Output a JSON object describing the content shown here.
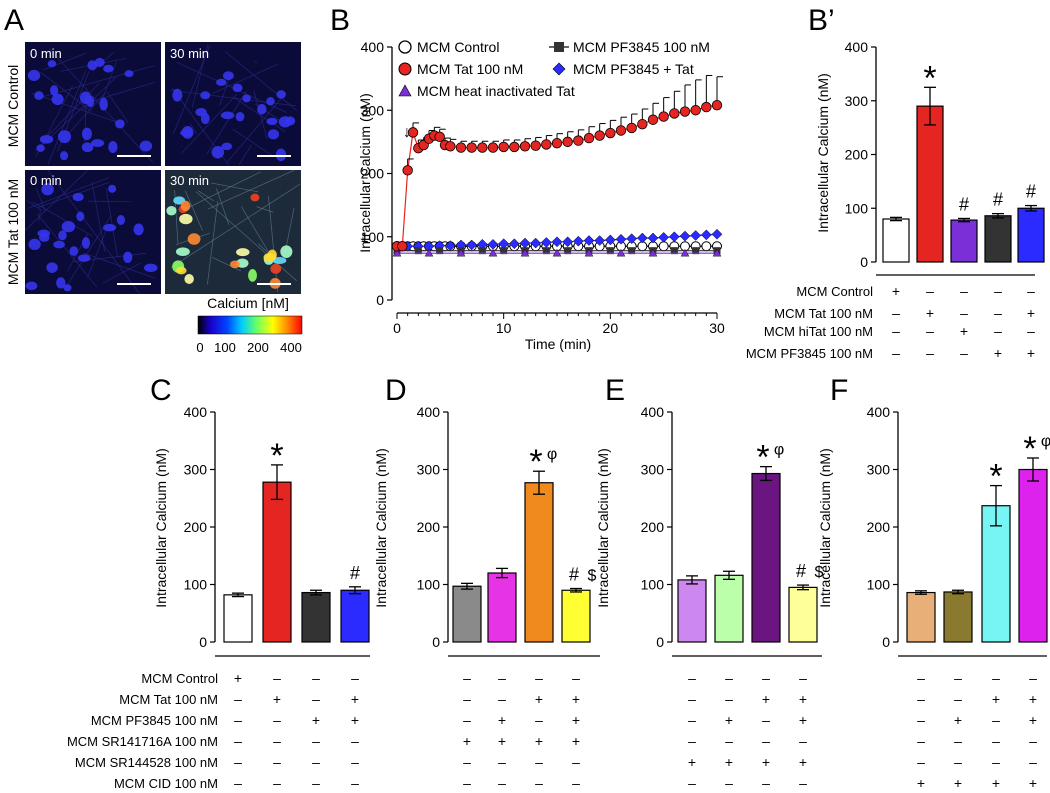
{
  "panelA": {
    "letter": "A",
    "row_labels": [
      "MCM Control",
      "MCM Tat 100 nM"
    ],
    "time_labels": [
      "0 min",
      "30 min",
      "0 min",
      "30 min"
    ],
    "colorbar": {
      "title": "Calcium [nM]",
      "ticks": [
        "0",
        "100",
        "200",
        "400"
      ]
    }
  },
  "colors": {
    "red": "#e52521",
    "purple": "#7b2fd6",
    "dark": "#333333",
    "blue": "#2b2bff",
    "gray": "#8a8a8a",
    "magenta": "#e633e6",
    "orange": "#f08a1e",
    "yellow": "#ffff33",
    "lilac": "#cc88ee",
    "lightgreen": "#bbffaa",
    "darkpurple": "#6b1580",
    "lightyellow": "#ffff99",
    "tan": "#e8b078",
    "olive": "#8a7a30",
    "cyan": "#77f5f5",
    "pink": "#dd22ee"
  },
  "chart_data": [
    {
      "id": "B",
      "letter": "B",
      "type": "line",
      "xlabel": "Time (min)",
      "ylabel": "Intracellular Calcium (nM)",
      "xlim": [
        0,
        30
      ],
      "ylim": [
        0,
        400
      ],
      "xticks": [
        "0",
        "10",
        "20",
        "30"
      ],
      "yticks": [
        "0",
        "100",
        "200",
        "300",
        "400"
      ],
      "arrow": "↓",
      "legend": [
        "MCM Control",
        "MCM Tat 100 nM",
        "MCM heat inactivated Tat",
        "MCM PF3845 100 nM",
        "MCM PF3845 + Tat"
      ],
      "series": [
        {
          "name": "MCM Control",
          "color": "#ffffff",
          "x": [
            0,
            0.5,
            1,
            1.5,
            2,
            2.5,
            3,
            3.5,
            4,
            4.5,
            5,
            6,
            7,
            8,
            9,
            10,
            11,
            12,
            13,
            14,
            15,
            16,
            17,
            18,
            19,
            20,
            21,
            22,
            23,
            24,
            25,
            26,
            27,
            28,
            29,
            30
          ],
          "y": [
            85,
            85,
            85,
            85,
            85,
            85,
            85,
            85,
            85,
            85,
            85,
            85,
            85,
            85,
            85,
            85,
            85,
            85,
            85,
            85,
            85,
            85,
            85,
            85,
            85,
            85,
            85,
            85,
            85,
            85,
            85,
            85,
            85,
            85,
            85,
            85
          ]
        },
        {
          "name": "MCM PF3845 + Tat",
          "color": "#2b2bff",
          "x": [
            0,
            1,
            2,
            3,
            4,
            5,
            6,
            7,
            8,
            9,
            10,
            11,
            12,
            13,
            14,
            15,
            16,
            17,
            18,
            19,
            20,
            21,
            22,
            23,
            24,
            25,
            26,
            27,
            28,
            29,
            30
          ],
          "y": [
            85,
            85,
            85,
            85,
            86,
            86,
            87,
            87,
            88,
            88,
            89,
            89,
            90,
            90,
            91,
            92,
            92,
            93,
            94,
            94,
            95,
            96,
            97,
            98,
            98,
            99,
            100,
            101,
            102,
            103,
            104
          ]
        },
        {
          "name": "MCM PF3845 100 nM",
          "color": "#333333",
          "x": [
            0,
            2,
            4,
            6,
            8,
            10,
            12,
            14,
            16,
            18,
            20,
            22,
            24,
            26,
            28,
            30
          ],
          "y": [
            78,
            78,
            78,
            78,
            78,
            78,
            78,
            78,
            78,
            78,
            78,
            78,
            78,
            78,
            78,
            78
          ]
        },
        {
          "name": "MCM heat inactivated Tat",
          "color": "#7b2fd6",
          "x": [
            0,
            3,
            6,
            9,
            12,
            15,
            18,
            21,
            24,
            27,
            30
          ],
          "y": [
            74,
            74,
            74,
            74,
            74,
            74,
            74,
            74,
            74,
            74,
            74
          ]
        },
        {
          "name": "MCM Tat 100 nM",
          "color": "#e52521",
          "x": [
            0,
            0.5,
            1,
            1.5,
            2,
            2.5,
            3,
            3.5,
            4,
            4.5,
            5,
            6,
            7,
            8,
            9,
            10,
            11,
            12,
            13,
            14,
            15,
            16,
            17,
            18,
            19,
            20,
            21,
            22,
            23,
            24,
            25,
            26,
            27,
            28,
            29,
            30
          ],
          "y": [
            85,
            85,
            205,
            265,
            240,
            245,
            255,
            260,
            258,
            245,
            243,
            241,
            241,
            241,
            241,
            242,
            242,
            243,
            244,
            246,
            248,
            250,
            252,
            256,
            260,
            264,
            268,
            272,
            278,
            285,
            290,
            295,
            298,
            300,
            305,
            308
          ],
          "err": [
            0,
            0,
            18,
            15,
            13,
            12,
            13,
            13,
            12,
            11,
            11,
            10,
            10,
            10,
            10,
            11,
            11,
            12,
            13,
            14,
            15,
            16,
            17,
            18,
            19,
            20,
            21,
            22,
            24,
            26,
            30,
            35,
            42,
            48,
            50,
            45
          ]
        }
      ]
    },
    {
      "id": "Bp",
      "letter": "B’",
      "type": "bar",
      "ylabel": "Intracellular Calcium (nM)",
      "ylim": [
        0,
        400
      ],
      "yticks": [
        "0",
        "100",
        "200",
        "300",
        "400"
      ],
      "values": [
        80,
        290,
        78,
        86,
        100
      ],
      "errors": [
        3,
        35,
        3,
        4,
        5
      ],
      "colors": [
        "#ffffff",
        "#e52521",
        "#7b2fd6",
        "#333333",
        "#2b2bff"
      ],
      "annotations": [
        "",
        "*",
        "#",
        "#",
        "#"
      ],
      "conditions": [
        {
          "label": "MCM Control",
          "signs": [
            "+",
            "–",
            "–",
            "–",
            "–"
          ]
        },
        {
          "label": "MCM Tat 100 nM",
          "signs": [
            "–",
            "+",
            "–",
            "–",
            "+"
          ]
        },
        {
          "label": "MCM hiTat 100 nM",
          "signs": [
            "–",
            "–",
            "+",
            "–",
            "–"
          ]
        },
        {
          "label": "MCM PF3845 100 nM",
          "signs": [
            "–",
            "–",
            "–",
            "+",
            "+"
          ]
        }
      ]
    },
    {
      "id": "C",
      "letter": "C",
      "type": "bar",
      "ylabel": "Intracellular Calcium (nM)",
      "ylim": [
        0,
        400
      ],
      "yticks": [
        "0",
        "100",
        "200",
        "300",
        "400"
      ],
      "values": [
        82,
        278,
        86,
        90
      ],
      "errors": [
        3,
        30,
        4,
        6
      ],
      "colors": [
        "#ffffff",
        "#e52521",
        "#333333",
        "#2b2bff"
      ],
      "annotations": [
        "",
        "*",
        "",
        "#"
      ],
      "signs": [
        [
          "+",
          "–",
          "–",
          "–"
        ],
        [
          "–",
          "+",
          "–",
          "+"
        ],
        [
          "–",
          "–",
          "+",
          "+"
        ],
        [
          "–",
          "–",
          "–",
          "–"
        ],
        [
          "–",
          "–",
          "–",
          "–"
        ],
        [
          "–",
          "–",
          "–",
          "–"
        ]
      ]
    },
    {
      "id": "D",
      "letter": "D",
      "type": "bar",
      "ylabel": "Intracellular Calcium (nM)",
      "ylim": [
        0,
        400
      ],
      "yticks": [
        "0",
        "100",
        "200",
        "300",
        "400"
      ],
      "values": [
        97,
        120,
        277,
        90
      ],
      "errors": [
        5,
        8,
        20,
        3
      ],
      "colors": [
        "#8a8a8a",
        "#e633e6",
        "#f08a1e",
        "#ffff33"
      ],
      "annotations": [
        "",
        "",
        "*φ",
        "#$"
      ],
      "signs": [
        [
          "–",
          "–",
          "–",
          "–"
        ],
        [
          "–",
          "–",
          "+",
          "+"
        ],
        [
          "–",
          "+",
          "–",
          "+"
        ],
        [
          "+",
          "+",
          "+",
          "+"
        ],
        [
          "–",
          "–",
          "–",
          "–"
        ],
        [
          "–",
          "–",
          "–",
          "–"
        ]
      ]
    },
    {
      "id": "E",
      "letter": "E",
      "type": "bar",
      "ylabel": "Intracellular Calcium (nM)",
      "ylim": [
        0,
        400
      ],
      "yticks": [
        "0",
        "100",
        "200",
        "300",
        "400"
      ],
      "values": [
        108,
        116,
        293,
        95
      ],
      "errors": [
        7,
        7,
        12,
        4
      ],
      "colors": [
        "#cc88ee",
        "#bbffaa",
        "#6b1580",
        "#ffff99"
      ],
      "annotations": [
        "",
        "",
        "*φ",
        "#$"
      ],
      "signs": [
        [
          "–",
          "–",
          "–",
          "–"
        ],
        [
          "–",
          "–",
          "+",
          "+"
        ],
        [
          "–",
          "+",
          "–",
          "+"
        ],
        [
          "–",
          "–",
          "–",
          "–"
        ],
        [
          "+",
          "+",
          "+",
          "+"
        ],
        [
          "–",
          "–",
          "–",
          "–"
        ]
      ]
    },
    {
      "id": "F",
      "letter": "F",
      "type": "bar",
      "ylabel": "Intracellular Calcium (nM)",
      "ylim": [
        0,
        400
      ],
      "yticks": [
        "0",
        "100",
        "200",
        "300",
        "400"
      ],
      "values": [
        86,
        87,
        237,
        300
      ],
      "errors": [
        3,
        3,
        35,
        20
      ],
      "colors": [
        "#e8b078",
        "#8a7a30",
        "#77f5f5",
        "#dd22ee"
      ],
      "annotations": [
        "",
        "",
        "*",
        "*φ"
      ],
      "signs": [
        [
          "–",
          "–",
          "–",
          "–"
        ],
        [
          "–",
          "–",
          "+",
          "+"
        ],
        [
          "–",
          "+",
          "–",
          "+"
        ],
        [
          "–",
          "–",
          "–",
          "–"
        ],
        [
          "–",
          "–",
          "–",
          "–"
        ],
        [
          "+",
          "+",
          "+",
          "+"
        ]
      ]
    }
  ],
  "bottom_conditions": [
    "MCM Control",
    "MCM Tat 100 nM",
    "MCM PF3845 100 nM",
    "MCM SR141716A 100 nM",
    "MCM SR144528 100 nM",
    "MCM CID 100 nM"
  ]
}
